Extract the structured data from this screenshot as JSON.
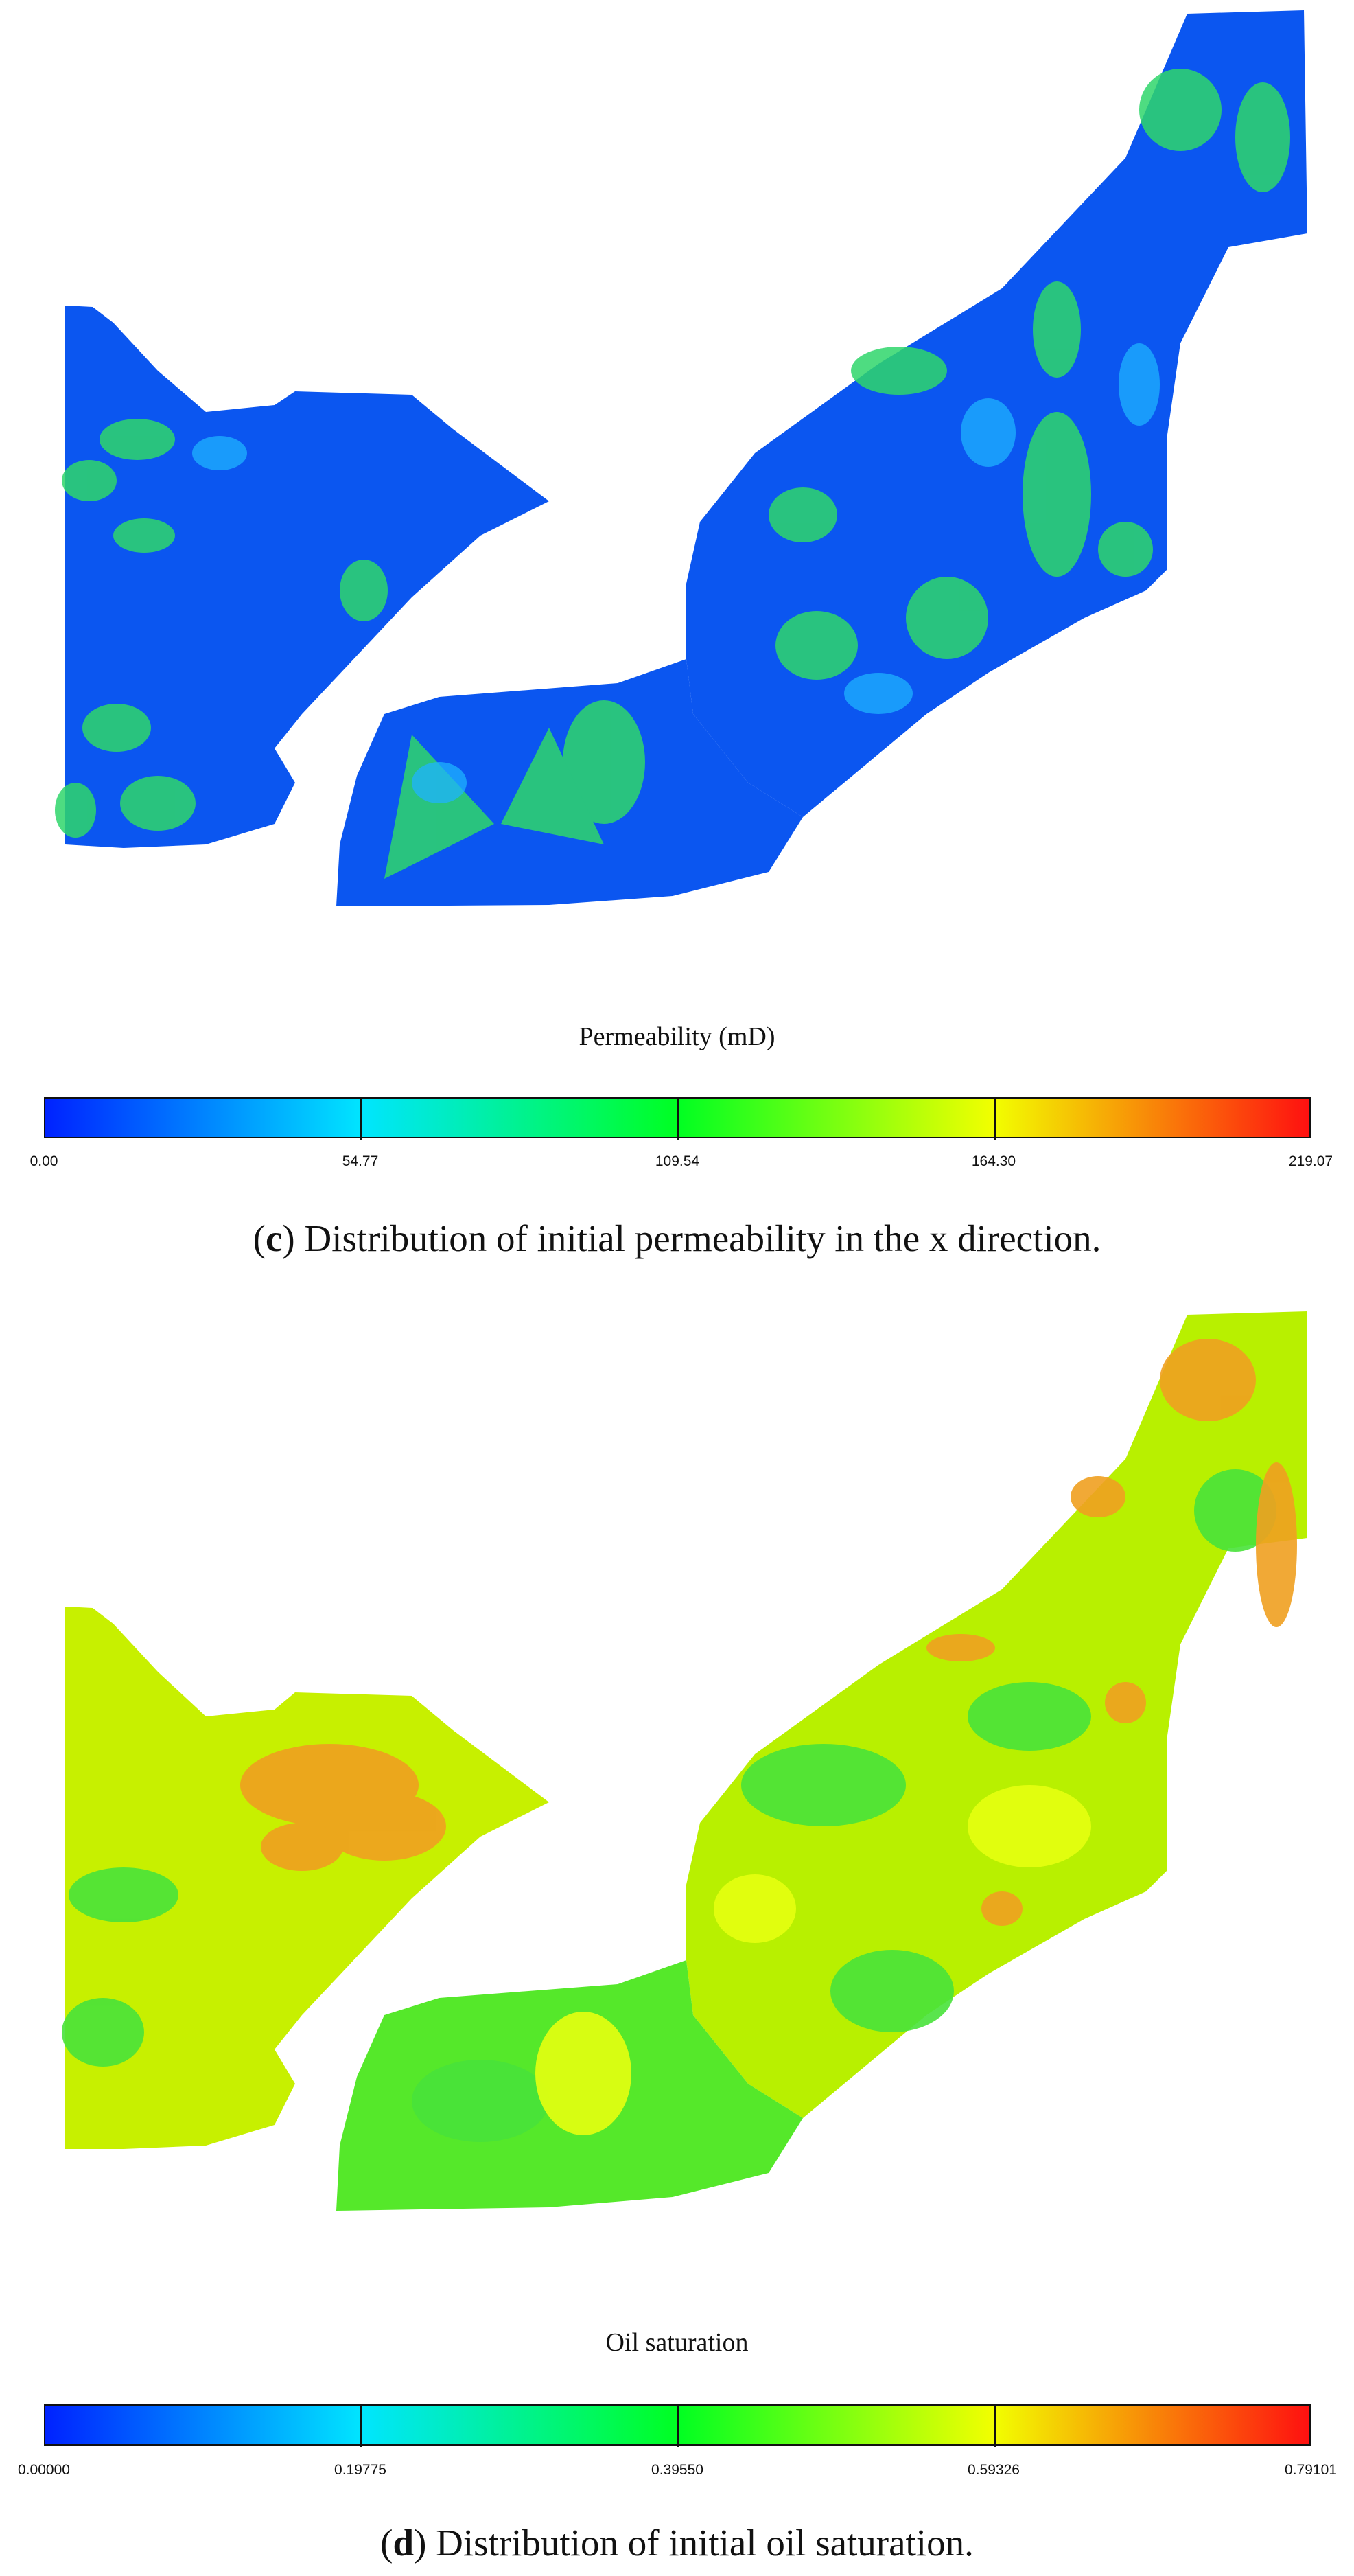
{
  "panel_c": {
    "legend_title": "Permeability (mD)",
    "ticks": [
      "0.00",
      "54.77",
      "109.54",
      "164.30",
      "219.07"
    ],
    "caption_letter": "c",
    "caption_text": "Distribution of initial permeability in the x direction."
  },
  "panel_d": {
    "legend_title": "Oil saturation",
    "ticks": [
      "0.00000",
      "0.19775",
      "0.39550",
      "0.59326",
      "0.79101"
    ],
    "caption_letter": "d",
    "caption_text": "Distribution of initial oil saturation."
  },
  "colormap": [
    "#0022ff",
    "#00e5ff",
    "#00ff22",
    "#f2ff00",
    "#ff1010"
  ]
}
